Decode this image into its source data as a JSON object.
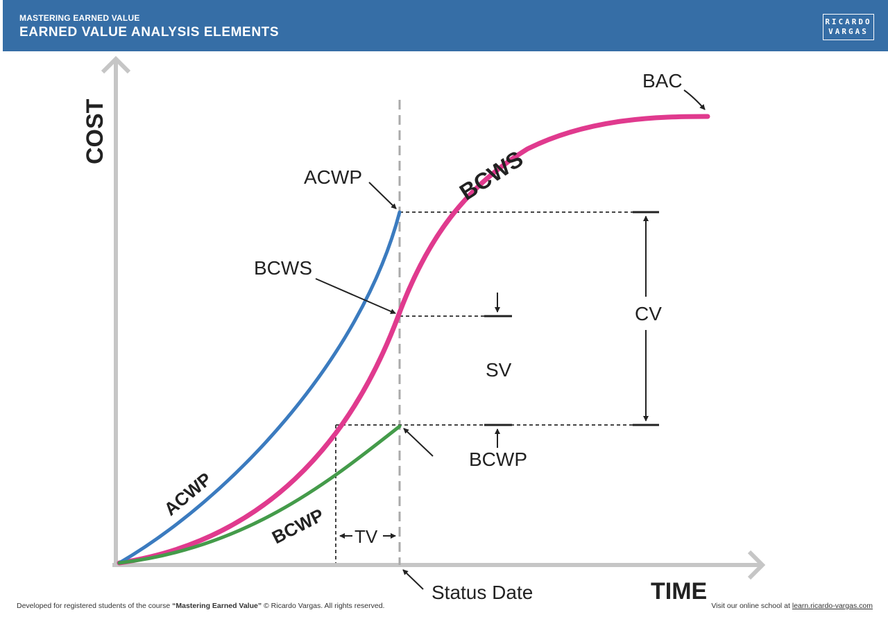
{
  "header": {
    "super_title": "MASTERING EARNED VALUE",
    "title": "EARNED VALUE ANALYSIS ELEMENTS",
    "logo_line1": "RICARDO",
    "logo_line2": "VARGAS",
    "background": "#366ea6"
  },
  "axes": {
    "y_label": "COST",
    "x_label": "TIME"
  },
  "curves": {
    "acwp": {
      "label": "ACWP",
      "color": "#3b7bbf"
    },
    "bcws": {
      "label": "BCWS",
      "color": "#e03a8e"
    },
    "bcwp": {
      "label": "BCWP",
      "color": "#449b4a"
    }
  },
  "annotations": {
    "bac": "BAC",
    "acwp": "ACWP",
    "bcws": "BCWS",
    "bcwp": "BCWP",
    "cv": "CV",
    "sv": "SV",
    "tv": "TV",
    "status_date": "Status Date"
  },
  "footer": {
    "left_prefix": "Developed for registered students of the course ",
    "left_course": "“Mastering Earned Value”",
    "left_suffix": " © Ricardo Vargas. All rights reserved.",
    "right_prefix": "Visit our online school at ",
    "right_link": "learn.ricardo-vargas.com"
  }
}
